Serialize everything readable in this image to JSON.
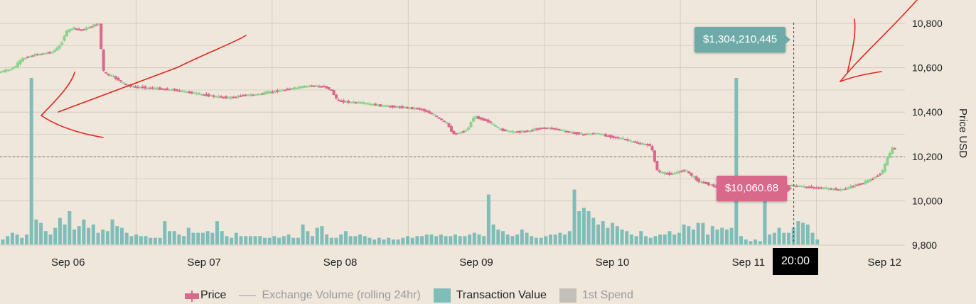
{
  "chart_data": {
    "type": "candlestick",
    "title": "",
    "ylabel": "Price USD",
    "ylim": [
      9800,
      10850
    ],
    "yticks": [
      "10,800",
      "10,600",
      "10,400",
      "10,200",
      "10,000",
      "9,800"
    ],
    "ytick_values": [
      10800,
      10600,
      10400,
      10200,
      10000,
      9800
    ],
    "xticks": [
      "Sep 06",
      "Sep 07",
      "Sep 08",
      "Sep 09",
      "Sep 10",
      "Sep 11",
      "Sep 12"
    ],
    "xtick_pos": [
      0.5,
      1.5,
      2.5,
      3.5,
      4.5,
      5.5,
      6.5
    ],
    "xlim": [
      0.0,
      6.65
    ],
    "reference_price": 10198,
    "price_series": [
      [
        0.0,
        10580
      ],
      [
        0.05,
        10585
      ],
      [
        0.12,
        10600
      ],
      [
        0.18,
        10640
      ],
      [
        0.25,
        10655
      ],
      [
        0.33,
        10665
      ],
      [
        0.4,
        10670
      ],
      [
        0.46,
        10700
      ],
      [
        0.5,
        10760
      ],
      [
        0.55,
        10780
      ],
      [
        0.62,
        10770
      ],
      [
        0.7,
        10790
      ],
      [
        0.75,
        10800
      ],
      [
        0.77,
        10590
      ],
      [
        0.8,
        10570
      ],
      [
        0.85,
        10560
      ],
      [
        0.9,
        10540
      ],
      [
        0.95,
        10520
      ],
      [
        1.0,
        10515
      ],
      [
        1.1,
        10510
      ],
      [
        1.2,
        10505
      ],
      [
        1.3,
        10500
      ],
      [
        1.4,
        10490
      ],
      [
        1.5,
        10480
      ],
      [
        1.6,
        10470
      ],
      [
        1.7,
        10465
      ],
      [
        1.8,
        10475
      ],
      [
        1.9,
        10480
      ],
      [
        2.0,
        10490
      ],
      [
        2.1,
        10500
      ],
      [
        2.2,
        10510
      ],
      [
        2.3,
        10520
      ],
      [
        2.4,
        10515
      ],
      [
        2.45,
        10500
      ],
      [
        2.5,
        10450
      ],
      [
        2.6,
        10445
      ],
      [
        2.7,
        10440
      ],
      [
        2.8,
        10430
      ],
      [
        2.9,
        10425
      ],
      [
        3.0,
        10420
      ],
      [
        3.1,
        10415
      ],
      [
        3.2,
        10390
      ],
      [
        3.3,
        10350
      ],
      [
        3.35,
        10300
      ],
      [
        3.45,
        10320
      ],
      [
        3.5,
        10380
      ],
      [
        3.6,
        10360
      ],
      [
        3.7,
        10320
      ],
      [
        3.8,
        10310
      ],
      [
        3.9,
        10315
      ],
      [
        4.0,
        10330
      ],
      [
        4.1,
        10325
      ],
      [
        4.2,
        10310
      ],
      [
        4.3,
        10300
      ],
      [
        4.4,
        10305
      ],
      [
        4.5,
        10290
      ],
      [
        4.6,
        10280
      ],
      [
        4.7,
        10260
      ],
      [
        4.8,
        10250
      ],
      [
        4.85,
        10130
      ],
      [
        4.95,
        10120
      ],
      [
        5.05,
        10140
      ],
      [
        5.15,
        10090
      ],
      [
        5.25,
        10070
      ],
      [
        5.3,
        10060
      ],
      [
        5.4,
        10055
      ],
      [
        5.5,
        10050
      ],
      [
        5.55,
        10045
      ],
      [
        5.6,
        10040
      ],
      [
        5.7,
        10060
      ],
      [
        5.8,
        10070
      ],
      [
        5.9,
        10065
      ],
      [
        6.0,
        10060
      ],
      [
        6.1,
        10055
      ],
      [
        6.2,
        10050
      ],
      [
        6.3,
        10070
      ],
      [
        6.4,
        10090
      ],
      [
        6.5,
        10130
      ],
      [
        6.55,
        10210
      ],
      [
        6.58,
        10240
      ]
    ],
    "transaction_value": {
      "name": "Transaction Value",
      "bar_x_start": 0.0,
      "bar_step": 0.035,
      "values": [
        0.03,
        0.05,
        0.07,
        0.06,
        0.04,
        0.06,
        1.0,
        0.15,
        0.13,
        0.08,
        0.06,
        0.1,
        0.16,
        0.12,
        0.2,
        0.09,
        0.11,
        0.15,
        0.1,
        0.12,
        0.07,
        0.09,
        0.08,
        0.15,
        0.11,
        0.1,
        0.07,
        0.05,
        0.06,
        0.05,
        0.05,
        0.04,
        0.04,
        0.04,
        0.14,
        0.08,
        0.08,
        0.06,
        0.05,
        0.1,
        0.07,
        0.07,
        0.07,
        0.08,
        0.07,
        0.14,
        0.08,
        0.05,
        0.04,
        0.07,
        0.05,
        0.05,
        0.05,
        0.05,
        0.05,
        0.04,
        0.04,
        0.05,
        0.04,
        0.05,
        0.06,
        0.04,
        0.04,
        0.12,
        0.08,
        0.05,
        0.1,
        0.11,
        0.06,
        0.04,
        0.04,
        0.06,
        0.08,
        0.05,
        0.05,
        0.06,
        0.05,
        0.04,
        0.03,
        0.04,
        0.03,
        0.04,
        0.03,
        0.03,
        0.04,
        0.05,
        0.04,
        0.05,
        0.05,
        0.06,
        0.06,
        0.05,
        0.06,
        0.05,
        0.05,
        0.06,
        0.05,
        0.05,
        0.06,
        0.07,
        0.06,
        0.05,
        0.3,
        0.12,
        0.09,
        0.08,
        0.06,
        0.05,
        0.06,
        0.09,
        0.07,
        0.05,
        0.04,
        0.04,
        0.05,
        0.06,
        0.06,
        0.07,
        0.06,
        0.08,
        0.33,
        0.2,
        0.22,
        0.2,
        0.16,
        0.12,
        0.14,
        0.1,
        0.13,
        0.11,
        0.09,
        0.08,
        0.06,
        0.05,
        0.08,
        0.05,
        0.04,
        0.05,
        0.06,
        0.06,
        0.08,
        0.06,
        0.07,
        0.12,
        0.11,
        0.09,
        0.13,
        0.13,
        0.06,
        0.11,
        0.09,
        0.1,
        0.09,
        0.1,
        1.0,
        0.05,
        0.03,
        0.02,
        0.03,
        0.02,
        0.27,
        0.06,
        0.07,
        0.1,
        0.07,
        0.07,
        0.1,
        0.14,
        0.13,
        0.12,
        0.07,
        0.03
      ]
    },
    "legend": [
      "Price",
      "Exchange Volume (rolling 24hr)",
      "Transaction Value",
      "1st Spend"
    ]
  },
  "tooltips": {
    "transaction_value": "$1,304,210,445",
    "price": "$10,060.68",
    "time": "20:00"
  },
  "colors": {
    "up": "#8ed28f",
    "down": "#d9698a",
    "tx": "#7fbdb9",
    "annotation": "#e1261c"
  }
}
